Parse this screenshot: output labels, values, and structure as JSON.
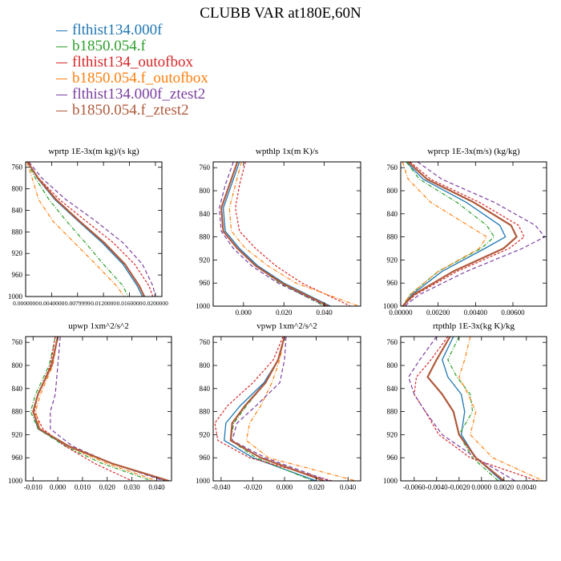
{
  "title": "CLUBB VAR at180E,60N",
  "legend": [
    {
      "name": "flthist134.000f",
      "color": "#1f77b4"
    },
    {
      "name": "b1850.054.f",
      "color": "#2ca02c"
    },
    {
      "name": "flthist134_outofbox",
      "color": "#d62728"
    },
    {
      "name": "b1850.054.f_outofbox",
      "color": "#ff7f0e"
    },
    {
      "name": "flthist134.000f_ztest2",
      "color": "#7b3fa0"
    },
    {
      "name": "b1850.054.f_ztest2",
      "color": "#b05a3c"
    }
  ],
  "chart_data": [
    {
      "type": "line",
      "title": "wprtp   1E-3x(m kg)/(s kg)",
      "xlim": [
        0.0,
        0.021
      ],
      "ylim": [
        1000,
        750
      ],
      "xticks": [
        0.0,
        0.004,
        0.008,
        0.012,
        0.016,
        0.02
      ],
      "xticklabels": [
        "0.0000000",
        "0.0040000",
        "0.0079999",
        "0.0120000",
        "0.0160000",
        "0.0200000"
      ],
      "yticks": [
        760,
        800,
        840,
        880,
        920,
        960,
        1000
      ],
      "y": [
        750,
        780,
        820,
        860,
        900,
        940,
        980,
        1000
      ],
      "series": [
        {
          "values": [
            0.0003,
            0.0018,
            0.0045,
            0.0081,
            0.0118,
            0.015,
            0.0172,
            0.018
          ]
        },
        {
          "values": [
            0.0002,
            0.0015,
            0.0036,
            0.0063,
            0.0092,
            0.012,
            0.015,
            0.0158
          ]
        },
        {
          "values": [
            0.0002,
            0.002,
            0.0052,
            0.0093,
            0.0135,
            0.0168,
            0.019,
            0.0196
          ]
        },
        {
          "values": [
            0.0002,
            0.001,
            0.002,
            0.0042,
            0.0075,
            0.0108,
            0.014,
            0.0152
          ]
        },
        {
          "values": [
            0.0005,
            0.0025,
            0.0062,
            0.0108,
            0.015,
            0.018,
            0.0196,
            0.02
          ]
        },
        {
          "values": [
            0.0003,
            0.0019,
            0.0047,
            0.0083,
            0.0121,
            0.0153,
            0.0175,
            0.0183
          ]
        }
      ]
    },
    {
      "type": "line",
      "title": "wpthlp   1x(m K)/s",
      "xlim": [
        -0.015,
        0.058
      ],
      "ylim": [
        1000,
        750
      ],
      "xticks": [
        0.0,
        0.02,
        0.04
      ],
      "xticklabels": [
        "0.000",
        "0.020",
        "0.040"
      ],
      "yticks": [
        760,
        800,
        840,
        880,
        920,
        960,
        1000
      ],
      "y": [
        750,
        790,
        830,
        870,
        900,
        930,
        960,
        1000
      ],
      "series": [
        {
          "values": [
            -0.002,
            -0.006,
            -0.01,
            -0.009,
            -0.002,
            0.007,
            0.02,
            0.043
          ]
        },
        {
          "values": [
            -0.003,
            -0.007,
            -0.011,
            -0.01,
            -0.003,
            0.006,
            0.018,
            0.04
          ]
        },
        {
          "values": [
            0.001,
            -0.002,
            -0.004,
            -0.002,
            0.006,
            0.016,
            0.029,
            0.053
          ]
        },
        {
          "values": [
            -0.001,
            -0.004,
            -0.007,
            -0.006,
            0.001,
            0.012,
            0.026,
            0.057
          ]
        },
        {
          "values": [
            -0.005,
            -0.009,
            -0.012,
            -0.011,
            -0.005,
            0.004,
            0.017,
            0.041
          ]
        },
        {
          "values": [
            -0.003,
            -0.007,
            -0.011,
            -0.01,
            -0.003,
            0.006,
            0.019,
            0.042
          ]
        }
      ]
    },
    {
      "type": "line",
      "title": "wprcp   1E-3x(m/s) (kg/kg)",
      "xlim": [
        0.0,
        0.0078
      ],
      "ylim": [
        1000,
        750
      ],
      "xticks": [
        0.0,
        0.002,
        0.004,
        0.006
      ],
      "xticklabels": [
        "0.00000",
        "0.00200",
        "0.00400",
        "0.00600"
      ],
      "yticks": [
        760,
        800,
        840,
        880,
        920,
        960,
        1000
      ],
      "y": [
        750,
        780,
        820,
        860,
        880,
        900,
        940,
        980,
        1000
      ],
      "series": [
        {
          "values": [
            0.0003,
            0.0012,
            0.0035,
            0.0053,
            0.0056,
            0.0045,
            0.0022,
            0.0006,
            0.0001
          ]
        },
        {
          "values": [
            0.0003,
            0.001,
            0.003,
            0.0046,
            0.005,
            0.0043,
            0.002,
            0.0005,
            0.0001
          ]
        },
        {
          "values": [
            0.0005,
            0.0016,
            0.0042,
            0.0063,
            0.0066,
            0.0058,
            0.003,
            0.0008,
            0.0001
          ]
        },
        {
          "values": [
            0.0001,
            0.0004,
            0.0016,
            0.0036,
            0.0046,
            0.0042,
            0.002,
            0.0005,
            0.0001
          ]
        },
        {
          "values": [
            0.0009,
            0.0022,
            0.005,
            0.0072,
            0.0077,
            0.0065,
            0.0035,
            0.001,
            0.0002
          ]
        },
        {
          "values": [
            0.0004,
            0.0014,
            0.0039,
            0.0059,
            0.0062,
            0.0055,
            0.0028,
            0.0007,
            0.0001
          ]
        }
      ]
    },
    {
      "type": "line",
      "title": "upwp   1xm^2/s^2",
      "xlim": [
        -0.013,
        0.046
      ],
      "ylim": [
        1000,
        750
      ],
      "xticks": [
        -0.01,
        0.0,
        0.01,
        0.02,
        0.03,
        0.04
      ],
      "xticklabels": [
        "-0.010",
        "0.000",
        "0.010",
        "0.020",
        "0.030",
        "0.040"
      ],
      "yticks": [
        760,
        800,
        840,
        880,
        920,
        960,
        1000
      ],
      "y": [
        750,
        800,
        850,
        880,
        910,
        940,
        970,
        1000
      ],
      "series": [
        {
          "values": [
            0.0,
            -0.0025,
            -0.008,
            -0.01,
            -0.008,
            0.004,
            0.022,
            0.044
          ]
        },
        {
          "values": [
            -0.001,
            -0.0035,
            -0.009,
            -0.011,
            -0.008,
            0.003,
            0.018,
            0.038
          ]
        },
        {
          "values": [
            -0.001,
            -0.003,
            -0.008,
            -0.0095,
            -0.006,
            0.003,
            0.015,
            0.03
          ]
        },
        {
          "values": [
            0.0,
            -0.002,
            -0.007,
            -0.009,
            -0.007,
            0.004,
            0.02,
            0.04
          ]
        },
        {
          "values": [
            0.001,
            0.0,
            -0.001,
            -0.003,
            -0.003,
            0.006,
            0.022,
            0.043
          ]
        },
        {
          "values": [
            0.0,
            -0.0025,
            -0.008,
            -0.01,
            -0.0075,
            0.0045,
            0.022,
            0.045
          ]
        }
      ]
    },
    {
      "type": "line",
      "title": "vpwp   1xm^2/s^2",
      "xlim": [
        -0.045,
        0.048
      ],
      "ylim": [
        1000,
        750
      ],
      "xticks": [
        -0.04,
        -0.02,
        0.0,
        0.02,
        0.04
      ],
      "xticklabels": [
        "-0.040",
        "-0.020",
        "0.000",
        "0.020",
        "0.040"
      ],
      "yticks": [
        760,
        800,
        840,
        880,
        920,
        960,
        1000
      ],
      "y": [
        750,
        790,
        830,
        870,
        900,
        930,
        960,
        1000
      ],
      "series": [
        {
          "values": [
            0.0,
            -0.004,
            -0.013,
            -0.028,
            -0.037,
            -0.038,
            -0.02,
            0.02
          ]
        },
        {
          "values": [
            0.0,
            -0.004,
            -0.012,
            -0.024,
            -0.032,
            -0.034,
            -0.018,
            0.018
          ]
        },
        {
          "values": [
            -0.001,
            -0.007,
            -0.02,
            -0.036,
            -0.044,
            -0.042,
            -0.022,
            0.03
          ]
        },
        {
          "values": [
            0.0,
            -0.003,
            -0.008,
            -0.015,
            -0.022,
            -0.024,
            -0.01,
            0.045
          ]
        },
        {
          "values": [
            0.001,
            0.0,
            -0.003,
            -0.018,
            -0.03,
            -0.033,
            -0.012,
            0.028
          ]
        },
        {
          "values": [
            0.0,
            -0.004,
            -0.012,
            -0.025,
            -0.033,
            -0.034,
            -0.015,
            0.025
          ]
        }
      ]
    },
    {
      "type": "line",
      "title": "rtpthlp   1E-3x(kg K)/kg",
      "xlim": [
        -0.0072,
        0.0058
      ],
      "ylim": [
        1000,
        750
      ],
      "xticks": [
        -0.006,
        -0.004,
        -0.002,
        0.0,
        0.002,
        0.004
      ],
      "xticklabels": [
        "-0.0060",
        "-0.0040",
        "-0.0020",
        "0.0000",
        "0.0020",
        "0.0040"
      ],
      "yticks": [
        760,
        800,
        840,
        880,
        920,
        960,
        1000
      ],
      "y": [
        750,
        790,
        820,
        850,
        880,
        920,
        960,
        1000
      ],
      "series": [
        {
          "values": [
            -0.0025,
            -0.0035,
            -0.003,
            -0.0018,
            -0.0015,
            -0.0018,
            -0.0005,
            0.0018
          ]
        },
        {
          "values": [
            -0.002,
            -0.003,
            -0.0022,
            -0.001,
            -0.0008,
            -0.002,
            -0.0008,
            0.0015
          ]
        },
        {
          "values": [
            -0.003,
            -0.0045,
            -0.0058,
            -0.006,
            -0.005,
            -0.0038,
            -0.001,
            0.005
          ]
        },
        {
          "values": [
            -0.001,
            -0.0015,
            -0.002,
            -0.0012,
            -0.0005,
            -0.001,
            0.001,
            0.0055
          ]
        },
        {
          "values": [
            -0.004,
            -0.0055,
            -0.0065,
            -0.006,
            -0.005,
            -0.0035,
            -0.0005,
            0.003
          ]
        },
        {
          "values": [
            -0.0028,
            -0.004,
            -0.0048,
            -0.0035,
            -0.0025,
            -0.002,
            -0.0005,
            0.002
          ]
        }
      ]
    }
  ]
}
